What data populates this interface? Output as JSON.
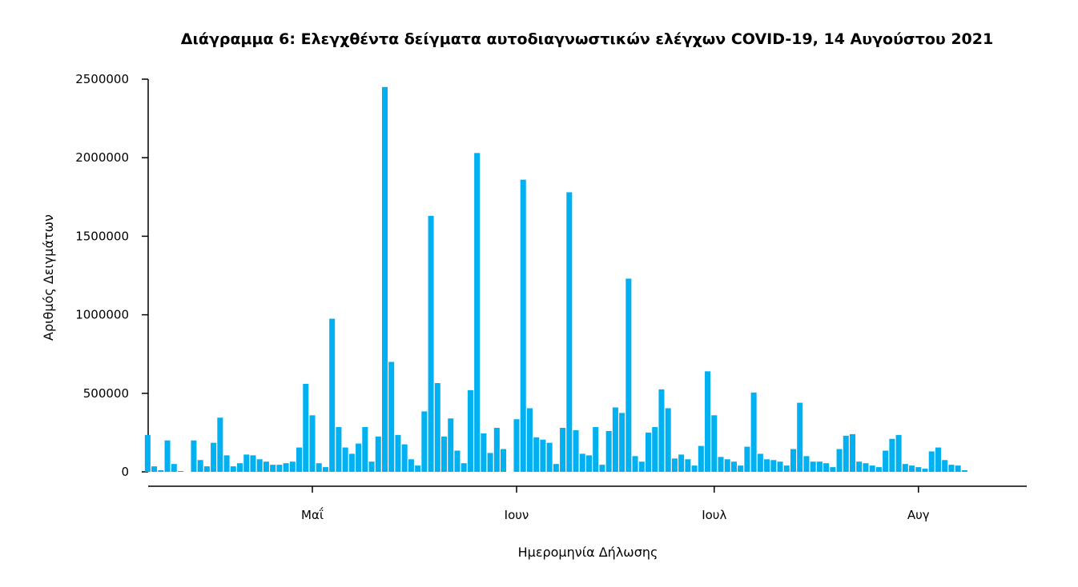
{
  "chart_data": {
    "type": "bar",
    "title": "Διάγραμμα 6: Ελεγχθέντα δείγματα αυτοδιαγνωστικών ελέγχων COVID-19, 14 Αυγούστου 2021",
    "xlabel": "Ημερομηνία Δήλωσης",
    "ylabel": "Αριθμός Δειγμάτων",
    "ylim": [
      0,
      2500000
    ],
    "y_ticks": [
      "0",
      "500000",
      "1000000",
      "1500000",
      "2000000",
      "2500000"
    ],
    "y_tick_values": [
      0,
      500000,
      1000000,
      1500000,
      2000000,
      2500000
    ],
    "x_ticks": [
      {
        "label": "Μαΐ",
        "day": 30
      },
      {
        "label": "Ιουν",
        "day": 61
      },
      {
        "label": "Ιουλ",
        "day": 91
      },
      {
        "label": "Αυγ",
        "day": 122
      }
    ],
    "x_range_days": [
      5,
      138
    ],
    "bar_color": "#00b0f0",
    "grid": false,
    "legend": "none",
    "start_day": 5,
    "values": [
      235000,
      35000,
      10000,
      200000,
      50000,
      5000,
      0,
      200000,
      75000,
      35000,
      185000,
      345000,
      105000,
      35000,
      55000,
      110000,
      105000,
      80000,
      65000,
      45000,
      45000,
      55000,
      65000,
      155000,
      560000,
      360000,
      55000,
      30000,
      975000,
      285000,
      155000,
      115000,
      180000,
      285000,
      65000,
      225000,
      2450000,
      700000,
      235000,
      175000,
      80000,
      40000,
      385000,
      1630000,
      565000,
      225000,
      340000,
      135000,
      55000,
      520000,
      2030000,
      245000,
      120000,
      280000,
      145000,
      0,
      335000,
      1860000,
      405000,
      220000,
      205000,
      185000,
      50000,
      280000,
      1780000,
      265000,
      115000,
      105000,
      285000,
      45000,
      260000,
      410000,
      375000,
      1230000,
      100000,
      65000,
      250000,
      285000,
      525000,
      405000,
      85000,
      110000,
      80000,
      40000,
      165000,
      640000,
      360000,
      95000,
      80000,
      65000,
      40000,
      160000,
      505000,
      115000,
      80000,
      75000,
      65000,
      40000,
      145000,
      440000,
      100000,
      65000,
      65000,
      55000,
      30000,
      145000,
      230000,
      240000,
      65000,
      55000,
      40000,
      30000,
      135000,
      210000,
      235000,
      50000,
      40000,
      30000,
      20000,
      130000,
      155000,
      75000,
      45000,
      40000,
      10000
    ]
  }
}
